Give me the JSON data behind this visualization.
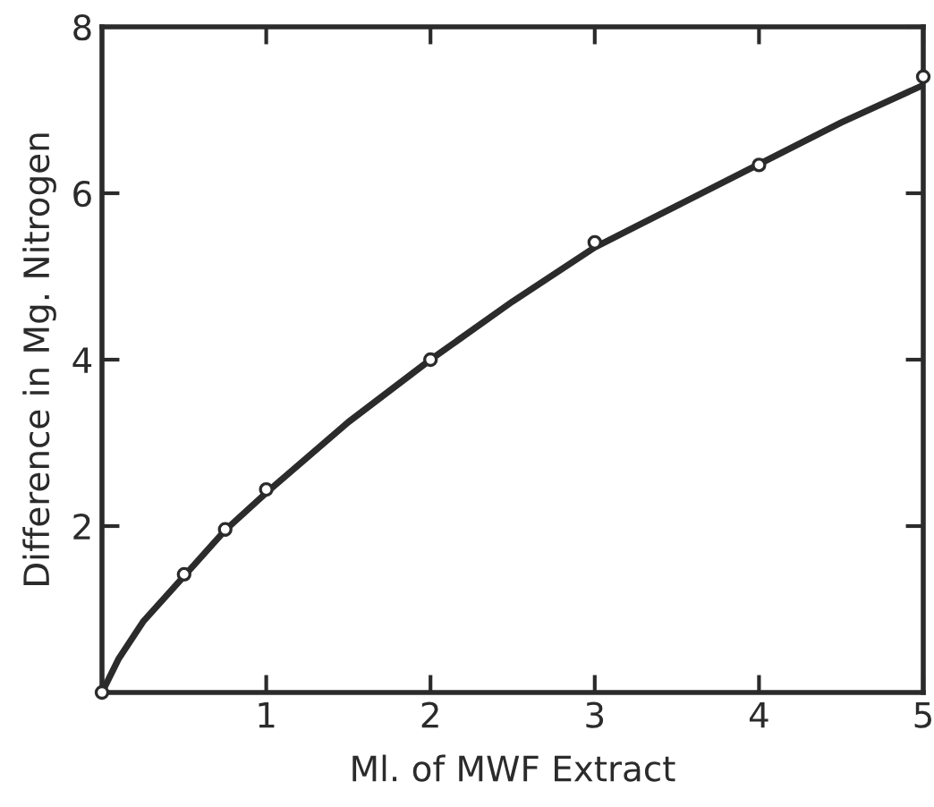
{
  "chart_data": {
    "type": "scatter",
    "xlabel": "Ml. of MWF Extract",
    "ylabel": "Difference in Mg. Nitrogen",
    "xlim": [
      0,
      5
    ],
    "ylim": [
      0,
      8
    ],
    "xticks": [
      1,
      2,
      3,
      4,
      5
    ],
    "yticks": [
      2,
      4,
      6,
      8
    ],
    "grid": false,
    "legend": false,
    "series": [
      {
        "type": "line",
        "color": "#2b2b2b",
        "marker": "none",
        "line_style": "solid",
        "x": [
          0,
          0.1,
          0.25,
          0.5,
          0.75,
          1,
          1.5,
          2,
          2.5,
          3,
          3.5,
          4,
          4.5,
          5
        ],
        "values": [
          0,
          0.4,
          0.85,
          1.4,
          1.95,
          2.4,
          3.25,
          4.0,
          4.7,
          5.35,
          5.85,
          6.35,
          6.85,
          7.3
        ]
      },
      {
        "color": "#2b2b2b",
        "marker": "circle",
        "x": [
          0,
          0.5,
          0.75,
          1,
          2,
          3,
          4,
          5
        ],
        "values": [
          0,
          1.42,
          1.96,
          2.44,
          4.0,
          5.41,
          6.34,
          7.4
        ]
      }
    ]
  }
}
